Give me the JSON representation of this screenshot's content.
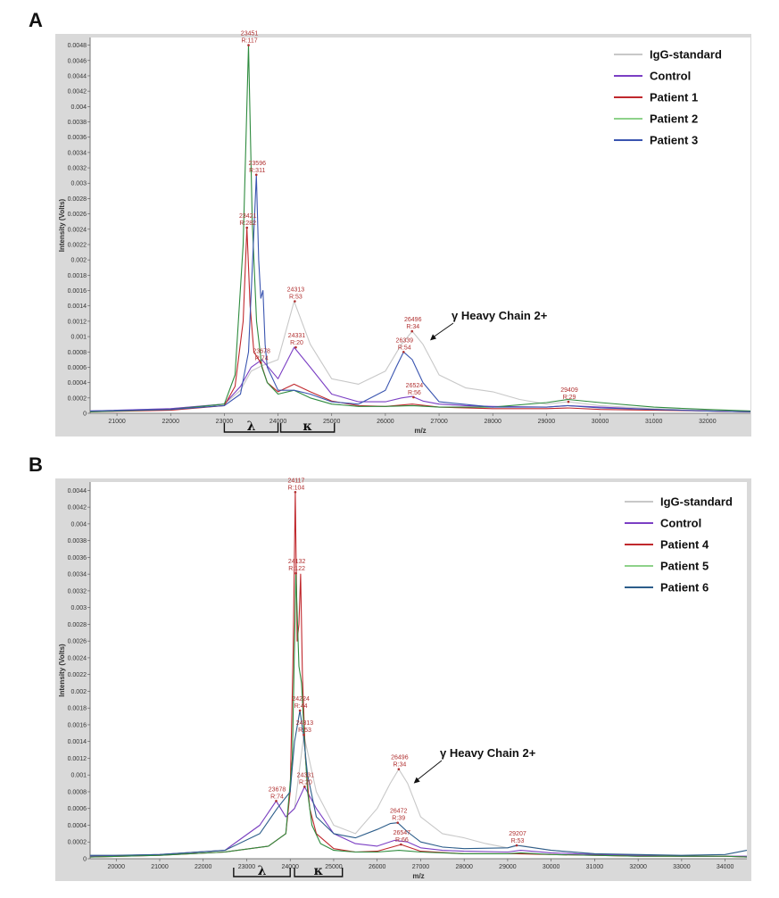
{
  "panels": [
    {
      "letter": "A",
      "ylabel": "Intensity (Volts)",
      "xlabel": "m/z",
      "xlim": [
        20500,
        32800
      ],
      "ylim": [
        0,
        0.0049
      ],
      "xticks": [
        21000,
        22000,
        23000,
        24000,
        25000,
        26000,
        27000,
        28000,
        29000,
        30000,
        31000,
        32000
      ],
      "yticks": [
        "0",
        "0.0002",
        "0.0004",
        "0.0006",
        "0.0008",
        "0.001",
        "0.0012",
        "0.0014",
        "0.0016",
        "0.0018",
        "0.002",
        "0.0022",
        "0.0024",
        "0.0026",
        "0.0028",
        "0.003",
        "0.0032",
        "0.0034",
        "0.0036",
        "0.0038",
        "0.004",
        "0.0042",
        "0.0044",
        "0.0046",
        "0.0048"
      ],
      "legend": [
        {
          "name": "IgG-standard",
          "color": "#c8c8c8"
        },
        {
          "name": "Control",
          "color": "#7b3fc4"
        },
        {
          "name": "Patient 1",
          "color": "#c0282d"
        },
        {
          "name": "Patient 2",
          "color": "#8ed28a"
        },
        {
          "name": "Patient 3",
          "color": "#3a55b0"
        }
      ],
      "annotations": [
        {
          "mz": 23451,
          "y": 0.0048,
          "l1": "23451",
          "l2": "R:117"
        },
        {
          "mz": 23596,
          "y": 0.00311,
          "l1": "23596",
          "l2": "R:311"
        },
        {
          "mz": 23421,
          "y": 0.00242,
          "l1": "23421",
          "l2": "R:282"
        },
        {
          "mz": 24313,
          "y": 0.00146,
          "l1": "24313",
          "l2": "R:53"
        },
        {
          "mz": 24331,
          "y": 0.00086,
          "l1": "24331",
          "l2": "R:20"
        },
        {
          "mz": 23678,
          "y": 0.00066,
          "l1": "23678",
          "l2": "R:74"
        },
        {
          "mz": 26496,
          "y": 0.00107,
          "l1": "26496",
          "l2": "R:34"
        },
        {
          "mz": 26339,
          "y": 0.0008,
          "l1": "26339",
          "l2": "R:54"
        },
        {
          "mz": 26524,
          "y": 0.00021,
          "l1": "26524",
          "l2": "R:56"
        },
        {
          "mz": 29409,
          "y": 0.00015,
          "l1": "29409",
          "l2": "R:29"
        }
      ],
      "callout": {
        "text": "γ Heavy Chain 2+",
        "mz": 26800,
        "y": 0.00095
      },
      "brackets": [
        {
          "label": "λ",
          "from": 23000,
          "to": 24000
        },
        {
          "label": "κ",
          "from": 24050,
          "to": 25050
        }
      ]
    },
    {
      "letter": "B",
      "ylabel": "Intensity (Volts)",
      "xlabel": "m/z",
      "xlim": [
        19400,
        34500
      ],
      "ylim": [
        0,
        0.0045
      ],
      "xticks": [
        20000,
        21000,
        22000,
        23000,
        24000,
        25000,
        26000,
        27000,
        28000,
        29000,
        30000,
        31000,
        32000,
        33000,
        34000
      ],
      "yticks": [
        "0",
        "0.0002",
        "0.0004",
        "0.0006",
        "0.0008",
        "0.001",
        "0.0012",
        "0.0014",
        "0.0016",
        "0.0018",
        "0.002",
        "0.0022",
        "0.0024",
        "0.0026",
        "0.0028",
        "0.003",
        "0.0032",
        "0.0034",
        "0.0036",
        "0.0038",
        "0.004",
        "0.0042",
        "0.0044"
      ],
      "legend": [
        {
          "name": "IgG-standard",
          "color": "#c8c8c8"
        },
        {
          "name": "Control",
          "color": "#7b3fc4"
        },
        {
          "name": "Patient 4",
          "color": "#c0282d"
        },
        {
          "name": "Patient 5",
          "color": "#8ed28a"
        },
        {
          "name": "Patient 6",
          "color": "#2c5d8a"
        }
      ],
      "annotations": [
        {
          "mz": 24117,
          "y": 0.00438,
          "l1": "24117",
          "l2": "R:104"
        },
        {
          "mz": 24132,
          "y": 0.00341,
          "l1": "24132",
          "l2": "R:122"
        },
        {
          "mz": 24224,
          "y": 0.00177,
          "l1": "24224",
          "l2": "R:44"
        },
        {
          "mz": 24313,
          "y": 0.00148,
          "l1": "24313",
          "l2": "R:53"
        },
        {
          "mz": 26496,
          "y": 0.00107,
          "l1": "26496",
          "l2": "R:34"
        },
        {
          "mz": 24331,
          "y": 0.00086,
          "l1": "24331",
          "l2": "R:20"
        },
        {
          "mz": 23678,
          "y": 0.00069,
          "l1": "23678",
          "l2": "R:74"
        },
        {
          "mz": 26472,
          "y": 0.00043,
          "l1": "26472",
          "l2": "R:39"
        },
        {
          "mz": 26547,
          "y": 0.00017,
          "l1": "26547",
          "l2": "R:66"
        },
        {
          "mz": 29207,
          "y": 0.00016,
          "l1": "29207",
          "l2": "R:53"
        }
      ],
      "callout": {
        "text": "γ Heavy Chain 2+",
        "mz": 26800,
        "y": 0.0009
      },
      "brackets": [
        {
          "label": "λ",
          "from": 22700,
          "to": 24000
        },
        {
          "label": "κ",
          "from": 24100,
          "to": 25200
        }
      ]
    }
  ],
  "chart_data": [
    {
      "type": "line",
      "title": "",
      "xlabel": "m/z",
      "ylabel": "Intensity (Volts)",
      "xlim": [
        20500,
        32800
      ],
      "ylim": [
        0,
        0.0049
      ],
      "grid": false,
      "legend_position": "top-right",
      "series": [
        {
          "name": "IgG-standard",
          "color": "#c8c8c8",
          "x": [
            20500,
            22000,
            23000,
            23300,
            23500,
            23700,
            24000,
            24300,
            24600,
            25000,
            25500,
            26000,
            26300,
            26500,
            26700,
            27000,
            27500,
            28000,
            28500,
            29000,
            29400,
            30000,
            31000,
            32000,
            32800
          ],
          "y": [
            3e-05,
            6e-05,
            0.00012,
            0.0003,
            0.00055,
            0.00062,
            0.0007,
            0.00146,
            0.0009,
            0.00045,
            0.00038,
            0.00055,
            0.0009,
            0.00107,
            0.0009,
            0.0005,
            0.00033,
            0.00028,
            0.00018,
            0.00012,
            0.00015,
            0.0001,
            6e-05,
            4e-05,
            3e-05
          ]
        },
        {
          "name": "Control",
          "color": "#7b3fc4",
          "x": [
            20500,
            22000,
            23000,
            23300,
            23500,
            23700,
            24000,
            24300,
            24600,
            25000,
            25500,
            26000,
            26300,
            26500,
            26700,
            27000,
            27500,
            28000,
            29000,
            29400,
            30000,
            31000,
            32000,
            32800
          ],
          "y": [
            3e-05,
            6e-05,
            0.00012,
            0.00035,
            0.0006,
            0.0007,
            0.00045,
            0.00086,
            0.0006,
            0.00025,
            0.00015,
            0.00015,
            0.0002,
            0.00022,
            0.00016,
            0.00012,
            0.0001,
            9e-05,
            8e-05,
            0.0001,
            8e-05,
            5e-05,
            3e-05,
            2e-05
          ]
        },
        {
          "name": "Patient 1",
          "color": "#c0282d",
          "x": [
            20500,
            22000,
            23000,
            23200,
            23350,
            23421,
            23480,
            23550,
            23678,
            23800,
            24000,
            24300,
            24600,
            25000,
            25500,
            26000,
            26500,
            27000,
            28000,
            29000,
            29400,
            30000,
            31000,
            32000,
            32800
          ],
          "y": [
            2e-05,
            4e-05,
            0.0001,
            0.00035,
            0.0012,
            0.00242,
            0.0014,
            0.0008,
            0.00066,
            0.0004,
            0.00028,
            0.00038,
            0.00028,
            0.00016,
            0.0001,
            9e-05,
            0.00012,
            8e-05,
            6e-05,
            6e-05,
            7e-05,
            5e-05,
            4e-05,
            3e-05,
            2e-05
          ]
        },
        {
          "name": "Patient 2",
          "color": "#2e8b3e",
          "x": [
            20500,
            22000,
            23000,
            23200,
            23350,
            23451,
            23520,
            23600,
            23700,
            23800,
            24000,
            24300,
            24600,
            25000,
            25500,
            26000,
            26500,
            27000,
            28000,
            29000,
            29400,
            30000,
            31000,
            32000,
            32800
          ],
          "y": [
            2e-05,
            5e-05,
            0.00012,
            0.0005,
            0.0022,
            0.0048,
            0.0025,
            0.0012,
            0.0006,
            0.0004,
            0.00025,
            0.0003,
            0.0002,
            0.00012,
            9e-05,
            9e-05,
            0.0001,
            8e-05,
            8e-05,
            0.00014,
            0.00018,
            0.00014,
            8e-05,
            5e-05,
            3e-05
          ]
        },
        {
          "name": "Patient 3",
          "color": "#3a55b0",
          "x": [
            20500,
            22000,
            23000,
            23300,
            23450,
            23540,
            23596,
            23640,
            23680,
            23720,
            23760,
            23800,
            24000,
            24300,
            24600,
            25000,
            25500,
            26000,
            26200,
            26339,
            26500,
            26700,
            27000,
            28000,
            29000,
            29400,
            30000,
            31000,
            32000,
            32800
          ],
          "y": [
            3e-05,
            5e-05,
            0.0001,
            0.00025,
            0.0008,
            0.0022,
            0.00311,
            0.002,
            0.0015,
            0.0016,
            0.0009,
            0.0006,
            0.0003,
            0.0003,
            0.00025,
            0.00015,
            0.00012,
            0.0003,
            0.0006,
            0.0008,
            0.0007,
            0.0004,
            0.00015,
            8e-05,
            8e-05,
            0.0001,
            7e-05,
            5e-05,
            3e-05,
            2e-05
          ]
        }
      ]
    },
    {
      "type": "line",
      "title": "",
      "xlabel": "m/z",
      "ylabel": "Intensity (Volts)",
      "xlim": [
        19400,
        34500
      ],
      "ylim": [
        0,
        0.0045
      ],
      "grid": false,
      "legend_position": "top-right",
      "series": [
        {
          "name": "IgG-standard",
          "color": "#c8c8c8",
          "x": [
            19400,
            21000,
            22500,
            23300,
            23678,
            23900,
            24100,
            24313,
            24600,
            25000,
            25500,
            26000,
            26300,
            26496,
            26700,
            27000,
            27500,
            28000,
            28500,
            29000,
            29300,
            30000,
            31000,
            32000,
            33000,
            34000,
            34500
          ],
          "y": [
            3e-05,
            5e-05,
            0.0001,
            0.0004,
            0.00069,
            0.0005,
            0.0006,
            0.00148,
            0.0008,
            0.0004,
            0.0003,
            0.0006,
            0.0009,
            0.00107,
            0.0009,
            0.0005,
            0.0003,
            0.00025,
            0.00018,
            0.00013,
            0.00016,
            0.0001,
            6e-05,
            4e-05,
            3e-05,
            3e-05,
            3e-05
          ]
        },
        {
          "name": "Control",
          "color": "#7b3fc4",
          "x": [
            19400,
            21000,
            22500,
            23300,
            23678,
            23900,
            24100,
            24331,
            24600,
            25000,
            25500,
            26000,
            26400,
            26700,
            27000,
            27500,
            28000,
            29000,
            29300,
            30000,
            31000,
            32000,
            33000,
            34000,
            34500
          ],
          "y": [
            3e-05,
            5e-05,
            0.0001,
            0.0004,
            0.00069,
            0.0005,
            0.0006,
            0.00086,
            0.0006,
            0.0003,
            0.00018,
            0.00015,
            0.00022,
            0.0002,
            0.00013,
            0.0001,
            9e-05,
            8e-05,
            0.0001,
            7e-05,
            5e-05,
            4e-05,
            3e-05,
            3e-05,
            3e-05
          ]
        },
        {
          "name": "Patient 4",
          "color": "#c0282d",
          "x": [
            19400,
            21000,
            22500,
            23500,
            23900,
            24000,
            24070,
            24117,
            24160,
            24200,
            24240,
            24280,
            24350,
            24450,
            24600,
            25000,
            25500,
            26000,
            26547,
            27000,
            28000,
            29000,
            29207,
            30000,
            31000,
            32000,
            33000,
            34000,
            34500
          ],
          "y": [
            2e-05,
            4e-05,
            8e-05,
            0.00015,
            0.0003,
            0.0008,
            0.0025,
            0.00438,
            0.0026,
            0.0028,
            0.0034,
            0.0022,
            0.0012,
            0.0006,
            0.0003,
            0.00012,
            8e-05,
            9e-05,
            0.00017,
            9e-05,
            6e-05,
            6e-05,
            6e-05,
            5e-05,
            4e-05,
            3e-05,
            3e-05,
            3e-05,
            2e-05
          ]
        },
        {
          "name": "Patient 5",
          "color": "#2e8b3e",
          "x": [
            19400,
            21000,
            22500,
            23500,
            23900,
            24050,
            24132,
            24200,
            24260,
            24320,
            24400,
            24500,
            24700,
            25000,
            25500,
            26000,
            26500,
            27000,
            28000,
            29000,
            29300,
            30000,
            31000,
            32000,
            33000,
            34000,
            34500
          ],
          "y": [
            2e-05,
            4e-05,
            8e-05,
            0.00015,
            0.0003,
            0.0012,
            0.00341,
            0.0023,
            0.0021,
            0.0015,
            0.0008,
            0.0004,
            0.00018,
            0.0001,
            8e-05,
            8e-05,
            0.0001,
            8e-05,
            6e-05,
            6e-05,
            7e-05,
            5e-05,
            4e-05,
            3e-05,
            3e-05,
            3e-05,
            2e-05
          ]
        },
        {
          "name": "Patient 6",
          "color": "#2c5d8a",
          "x": [
            19400,
            20000,
            21000,
            22500,
            23300,
            23700,
            24000,
            24100,
            24224,
            24300,
            24400,
            24600,
            25000,
            25500,
            26000,
            26300,
            26472,
            26700,
            27000,
            27500,
            28000,
            29000,
            29207,
            30000,
            31000,
            32000,
            33000,
            34000,
            34500
          ],
          "y": [
            4e-05,
            4e-05,
            5e-05,
            0.0001,
            0.0003,
            0.0006,
            0.0008,
            0.0014,
            0.00177,
            0.0015,
            0.001,
            0.0005,
            0.0003,
            0.00025,
            0.00035,
            0.00042,
            0.00043,
            0.00032,
            0.0002,
            0.00014,
            0.00012,
            0.00013,
            0.00016,
            0.0001,
            6e-05,
            5e-05,
            4e-05,
            5e-05,
            0.0001
          ]
        }
      ]
    }
  ]
}
